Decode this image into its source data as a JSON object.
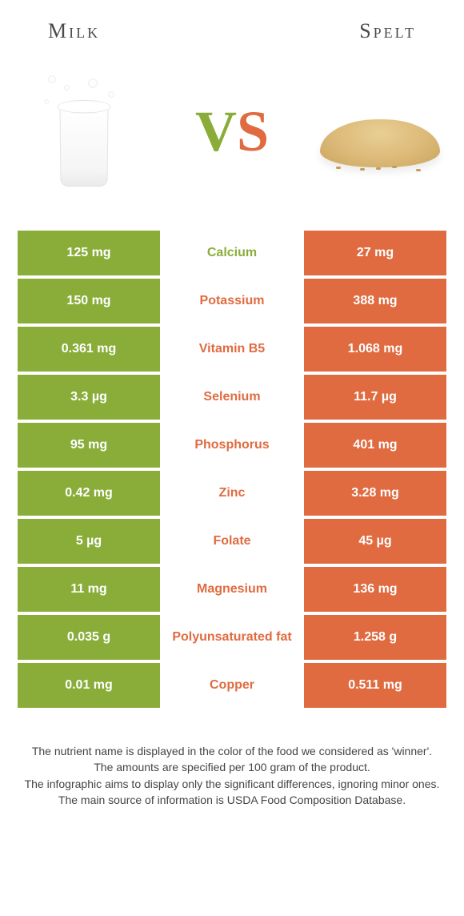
{
  "header": {
    "left": "Milk",
    "right": "Spelt"
  },
  "vs": {
    "v": "V",
    "s": "S"
  },
  "colors": {
    "left_bg": "#8aad3a",
    "right_bg": "#e06b41",
    "left_text": "#8aad3a",
    "right_text": "#e06b41",
    "cell_text": "#ffffff"
  },
  "rows": [
    {
      "left": "125 mg",
      "label": "Calcium",
      "right": "27 mg",
      "winner": "left"
    },
    {
      "left": "150 mg",
      "label": "Potassium",
      "right": "388 mg",
      "winner": "right"
    },
    {
      "left": "0.361 mg",
      "label": "Vitamin B5",
      "right": "1.068 mg",
      "winner": "right"
    },
    {
      "left": "3.3 µg",
      "label": "Selenium",
      "right": "11.7 µg",
      "winner": "right"
    },
    {
      "left": "95 mg",
      "label": "Phosphorus",
      "right": "401 mg",
      "winner": "right"
    },
    {
      "left": "0.42 mg",
      "label": "Zinc",
      "right": "3.28 mg",
      "winner": "right"
    },
    {
      "left": "5 µg",
      "label": "Folate",
      "right": "45 µg",
      "winner": "right"
    },
    {
      "left": "11 mg",
      "label": "Magnesium",
      "right": "136 mg",
      "winner": "right"
    },
    {
      "left": "0.035 g",
      "label": "Polyunsaturated fat",
      "right": "1.258 g",
      "winner": "right"
    },
    {
      "left": "0.01 mg",
      "label": "Copper",
      "right": "0.511 mg",
      "winner": "right"
    }
  ],
  "footnotes": [
    "The nutrient name is displayed in the color of the food we considered as 'winner'.",
    "The amounts are specified per 100 gram of the product.",
    "The infographic aims to display only the significant differences, ignoring minor ones.",
    "The main source of information is USDA Food Composition Database."
  ]
}
